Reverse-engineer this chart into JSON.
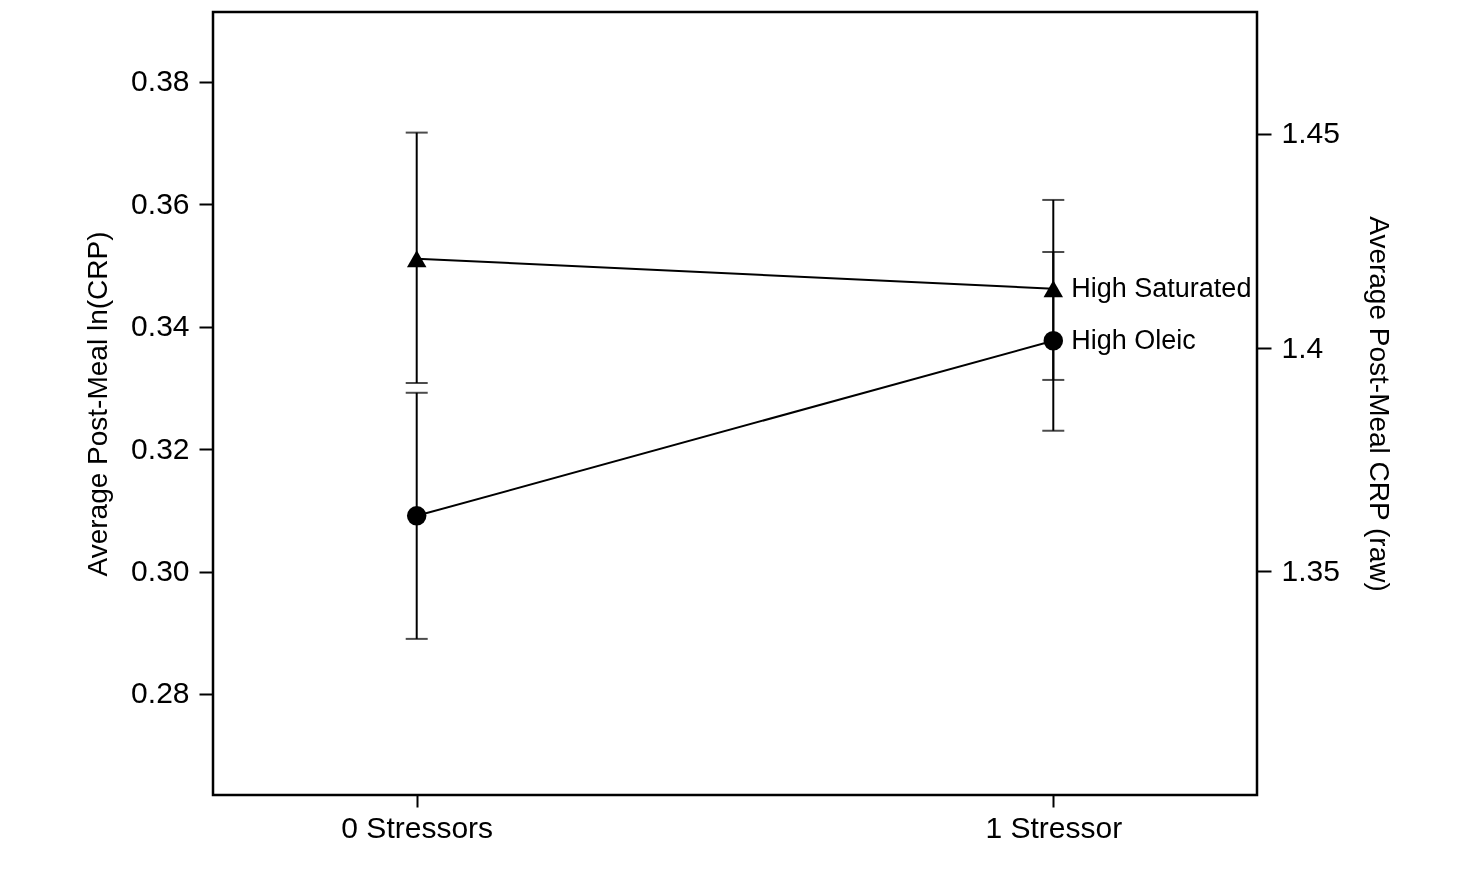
{
  "chart_data": {
    "type": "line",
    "categories": [
      "0 Stressors",
      "1 Stressor"
    ],
    "ylabel": "Average Post-Meal ln(CRP)",
    "y2label": "Average Post-Meal CRP (raw)",
    "ylim": [
      0.2635,
      0.3914
    ],
    "yticks": [
      {
        "value": 0.28,
        "label": "0.28"
      },
      {
        "value": 0.3,
        "label": "0.30"
      },
      {
        "value": 0.32,
        "label": "0.32"
      },
      {
        "value": 0.34,
        "label": "0.34"
      },
      {
        "value": 0.36,
        "label": "0.36"
      },
      {
        "value": 0.38,
        "label": "0.38"
      }
    ],
    "y2lim": [
      1.3015,
      1.4791
    ],
    "y2ticks": [
      1.35,
      1.4,
      1.45
    ],
    "log": "y2",
    "grid": false,
    "line_style": "solid",
    "series": [
      {
        "name": "High Saturated",
        "color": "#000000",
        "marker": "triangle",
        "values": [
          0.3511,
          0.3462
        ],
        "errors": [
          [
            0.3308,
            0.3717
          ],
          [
            0.3313,
            0.3607
          ]
        ]
      },
      {
        "name": "High Oleic",
        "color": "#000000",
        "marker": "circle",
        "values": [
          0.3091,
          0.3377
        ],
        "errors": [
          [
            0.289,
            0.3292
          ],
          [
            0.323,
            0.3522
          ]
        ]
      }
    ]
  }
}
